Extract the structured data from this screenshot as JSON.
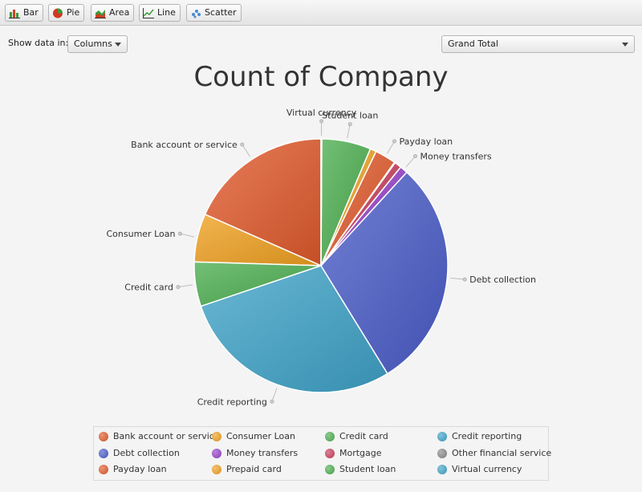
{
  "toolbar": {
    "buttons": [
      {
        "label": "Bar",
        "icon": "bar-chart-icon"
      },
      {
        "label": "Pie",
        "icon": "pie-chart-icon"
      },
      {
        "label": "Area",
        "icon": "area-chart-icon"
      },
      {
        "label": "Line",
        "icon": "line-chart-icon"
      },
      {
        "label": "Scatter",
        "icon": "scatter-chart-icon"
      }
    ]
  },
  "controls": {
    "show_data_label": "Show data in:",
    "orientation_value": "Columns",
    "series_value": "Grand Total"
  },
  "chart_data": {
    "type": "pie",
    "title": "Count of Company",
    "start_angle_deg": 90,
    "direction": "counterclockwise",
    "slices": [
      {
        "label": "Bank account or service",
        "value": 18.5,
        "color": "#e05a2b"
      },
      {
        "label": "Consumer Loan",
        "value": 6.2,
        "color": "#f0a020"
      },
      {
        "label": "Credit card",
        "value": 5.7,
        "color": "#4cae4f"
      },
      {
        "label": "Credit reporting",
        "value": 28.8,
        "color": "#3fa3c8"
      },
      {
        "label": "Debt collection",
        "value": 29.6,
        "color": "#4a5cc8"
      },
      {
        "label": "Money transfers",
        "value": 1.0,
        "color": "#9640c8"
      },
      {
        "label": "Mortgage",
        "value": 0.9,
        "color": "#c83c5a"
      },
      {
        "label": "Other financial service",
        "value": 0.1,
        "color": "#888888"
      },
      {
        "label": "Payday loan",
        "value": 2.7,
        "color": "#e05a2b"
      },
      {
        "label": "Prepaid card",
        "value": 0.8,
        "color": "#f0a020"
      },
      {
        "label": "Student loan",
        "value": 6.3,
        "color": "#4cae4f"
      },
      {
        "label": "Virtual currency",
        "value": 0.1,
        "color": "#3fa3c8"
      }
    ],
    "labelled_slices": [
      "Debt collection",
      "Money transfers",
      "Payday loan",
      "Student loan",
      "Virtual currency",
      "Bank account or service",
      "Consumer Loan",
      "Credit card",
      "Credit reporting"
    ],
    "legend_placement": "bottom"
  }
}
